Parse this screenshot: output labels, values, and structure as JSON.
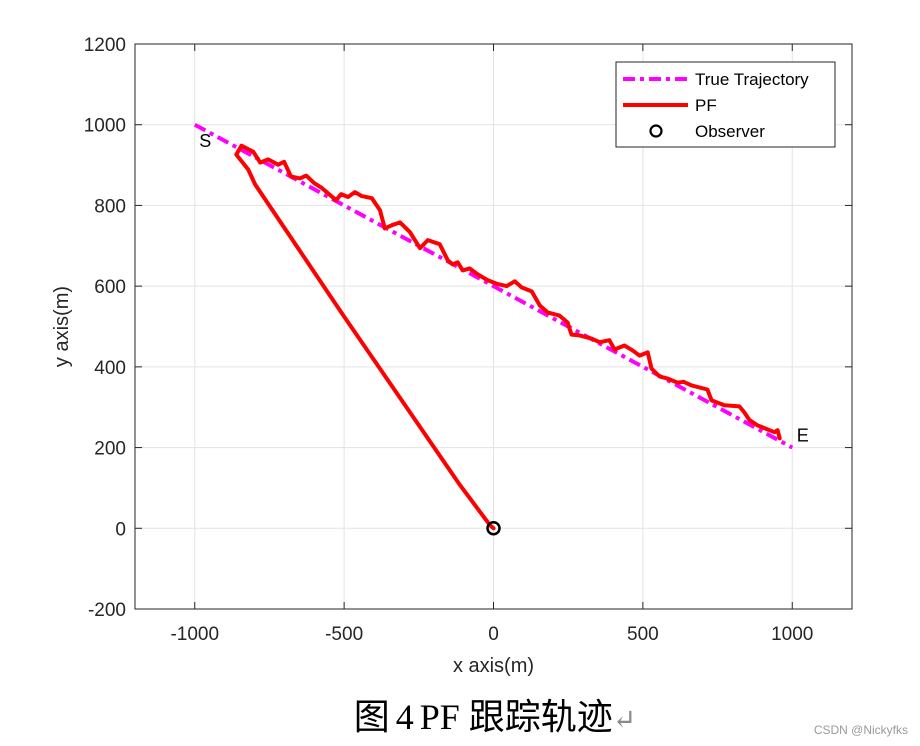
{
  "chart_data": {
    "type": "line",
    "title": "",
    "xlabel": "x axis(m)",
    "ylabel": "y axis(m)",
    "xlim": [
      -1200,
      1200
    ],
    "ylim": [
      -200,
      1200
    ],
    "xticks": [
      -1000,
      -500,
      0,
      500,
      1000
    ],
    "yticks": [
      -200,
      0,
      200,
      400,
      600,
      800,
      1000,
      1200
    ],
    "xtick_labels": [
      "-1000",
      "-500",
      "0",
      "500",
      "1000"
    ],
    "ytick_labels": [
      "-200",
      "0",
      "200",
      "400",
      "600",
      "800",
      "1000",
      "1200"
    ],
    "grid": true,
    "legend_position": "northeast",
    "series": [
      {
        "name": "True Trajectory",
        "style": "dash-dot",
        "color": "#ff00ff",
        "x": [
          -1000,
          1000
        ],
        "y": [
          1000,
          200
        ]
      },
      {
        "name": "PF",
        "style": "solid",
        "color": "#ff0000",
        "x": [
          0,
          -12,
          -112,
          -503,
          -798,
          -821,
          -861,
          -844,
          -804,
          -781,
          -754,
          -721,
          -701,
          -678,
          -648,
          -627,
          -600,
          -574,
          -527,
          -510,
          -487,
          -464,
          -441,
          -407,
          -380,
          -364,
          -340,
          -313,
          -280,
          -246,
          -220,
          -180,
          -153,
          -137,
          -120,
          -103,
          -80,
          -53,
          -20,
          14,
          44,
          71,
          94,
          128,
          155,
          181,
          221,
          248,
          261,
          288,
          328,
          355,
          388,
          405,
          438,
          465,
          489,
          516,
          529,
          556,
          583,
          616,
          636,
          663,
          716,
          730,
          773,
          823,
          840,
          857,
          884,
          941,
          951,
          958
        ],
        "y": [
          0,
          8,
          107,
          528,
          852,
          889,
          926,
          948,
          933,
          906,
          914,
          901,
          908,
          872,
          867,
          874,
          855,
          843,
          813,
          828,
          821,
          833,
          823,
          818,
          788,
          743,
          751,
          758,
          734,
          694,
          714,
          704,
          664,
          654,
          659,
          639,
          644,
          629,
          615,
          605,
          600,
          612,
          597,
          587,
          552,
          535,
          527,
          510,
          480,
          478,
          470,
          461,
          466,
          443,
          453,
          441,
          428,
          436,
          396,
          376,
          371,
          361,
          363,
          354,
          344,
          317,
          305,
          302,
          287,
          268,
          255,
          238,
          243,
          223
        ]
      },
      {
        "name": "Observer",
        "style": "marker-circle",
        "color": "#000000",
        "x": [
          0
        ],
        "y": [
          0
        ]
      }
    ],
    "annotations": [
      {
        "text": "S",
        "x": -985,
        "y": 945
      },
      {
        "text": "E",
        "x": 1015,
        "y": 215
      }
    ]
  },
  "legend": {
    "items": [
      {
        "label": "True Trajectory"
      },
      {
        "label": "PF"
      },
      {
        "label": "Observer"
      }
    ]
  },
  "caption": {
    "prefix": "图",
    "number": "4",
    "text": "PF 跟踪轨迹",
    "return_mark": "↵"
  },
  "watermark": "CSDN @Nickyfks"
}
